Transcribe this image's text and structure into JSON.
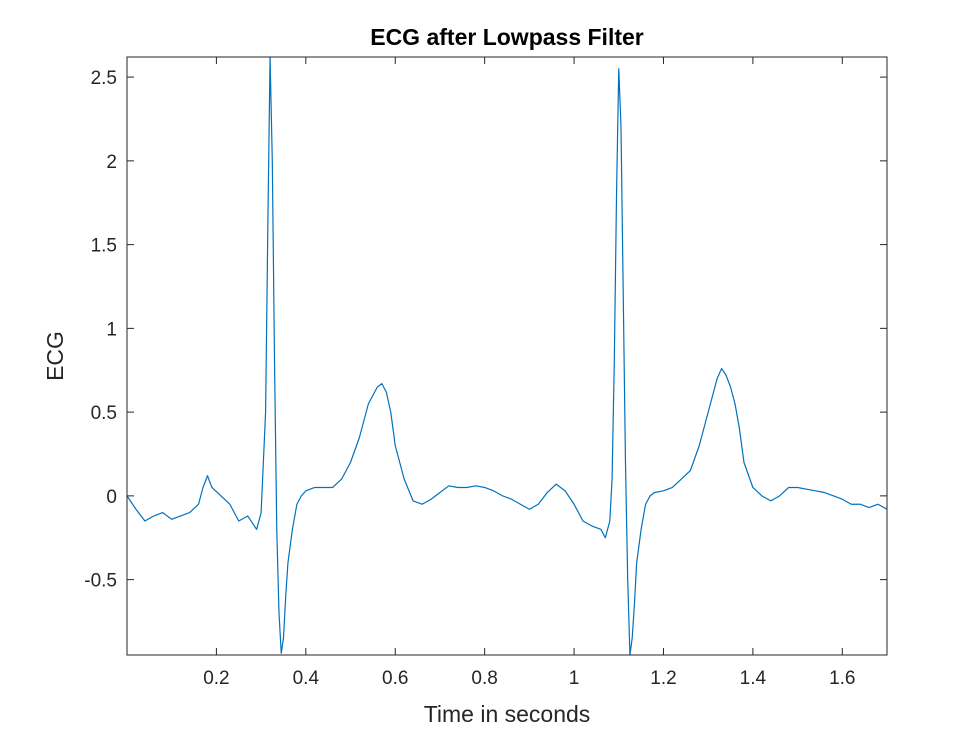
{
  "chart_data": {
    "type": "line",
    "title": "ECG after Lowpass Filter",
    "xlabel": "Time in seconds",
    "ylabel": "ECG",
    "xlim": [
      0.0,
      1.7
    ],
    "ylim": [
      -0.95,
      2.62
    ],
    "xticks": [
      0.2,
      0.4,
      0.6,
      0.8,
      1.0,
      1.2,
      1.4,
      1.6
    ],
    "xtick_labels": [
      "0.2",
      "0.4",
      "0.6",
      "0.8",
      "1",
      "1.2",
      "1.4",
      "1.6"
    ],
    "yticks": [
      -0.5,
      0,
      0.5,
      1,
      1.5,
      2,
      2.5
    ],
    "ytick_labels": [
      "-0.5",
      "0",
      "0.5",
      "1",
      "1.5",
      "2",
      "2.5"
    ],
    "grid": false,
    "line_color": "#0072bd",
    "series": [
      {
        "name": "",
        "x": [
          0.0,
          0.02,
          0.04,
          0.06,
          0.08,
          0.1,
          0.12,
          0.14,
          0.16,
          0.17,
          0.18,
          0.19,
          0.21,
          0.23,
          0.25,
          0.27,
          0.29,
          0.3,
          0.31,
          0.315,
          0.32,
          0.325,
          0.33,
          0.335,
          0.34,
          0.345,
          0.35,
          0.355,
          0.36,
          0.37,
          0.38,
          0.39,
          0.4,
          0.42,
          0.44,
          0.46,
          0.48,
          0.5,
          0.52,
          0.54,
          0.55,
          0.56,
          0.57,
          0.58,
          0.59,
          0.6,
          0.62,
          0.64,
          0.66,
          0.68,
          0.7,
          0.72,
          0.74,
          0.76,
          0.78,
          0.8,
          0.82,
          0.84,
          0.86,
          0.88,
          0.9,
          0.92,
          0.94,
          0.96,
          0.98,
          1.0,
          1.02,
          1.04,
          1.06,
          1.07,
          1.08,
          1.085,
          1.09,
          1.095,
          1.1,
          1.105,
          1.11,
          1.115,
          1.12,
          1.125,
          1.13,
          1.135,
          1.14,
          1.15,
          1.16,
          1.17,
          1.18,
          1.2,
          1.22,
          1.24,
          1.26,
          1.28,
          1.3,
          1.31,
          1.32,
          1.33,
          1.34,
          1.35,
          1.36,
          1.37,
          1.38,
          1.4,
          1.42,
          1.44,
          1.46,
          1.48,
          1.5,
          1.52,
          1.54,
          1.56,
          1.58,
          1.6,
          1.62,
          1.64,
          1.66,
          1.68,
          1.7
        ],
        "y": [
          0.0,
          -0.08,
          -0.15,
          -0.12,
          -0.1,
          -0.14,
          -0.12,
          -0.1,
          -0.05,
          0.05,
          0.12,
          0.05,
          0.0,
          -0.05,
          -0.15,
          -0.12,
          -0.2,
          -0.1,
          0.5,
          1.6,
          2.62,
          2.0,
          0.8,
          -0.2,
          -0.7,
          -0.94,
          -0.85,
          -0.6,
          -0.4,
          -0.2,
          -0.05,
          0.0,
          0.03,
          0.05,
          0.05,
          0.05,
          0.1,
          0.2,
          0.35,
          0.55,
          0.6,
          0.65,
          0.67,
          0.62,
          0.5,
          0.3,
          0.1,
          -0.03,
          -0.05,
          -0.02,
          0.02,
          0.06,
          0.05,
          0.05,
          0.06,
          0.05,
          0.03,
          0.0,
          -0.02,
          -0.05,
          -0.08,
          -0.05,
          0.02,
          0.07,
          0.03,
          -0.05,
          -0.15,
          -0.18,
          -0.2,
          -0.25,
          -0.15,
          0.1,
          0.8,
          1.8,
          2.55,
          2.2,
          1.2,
          0.2,
          -0.5,
          -0.95,
          -0.85,
          -0.65,
          -0.4,
          -0.2,
          -0.05,
          0.0,
          0.02,
          0.03,
          0.05,
          0.1,
          0.15,
          0.3,
          0.5,
          0.6,
          0.7,
          0.76,
          0.72,
          0.65,
          0.55,
          0.4,
          0.2,
          0.05,
          0.0,
          -0.03,
          0.0,
          0.05,
          0.05,
          0.04,
          0.03,
          0.02,
          0.0,
          -0.02,
          -0.05,
          -0.05,
          -0.07,
          -0.05,
          -0.08
        ]
      }
    ]
  }
}
